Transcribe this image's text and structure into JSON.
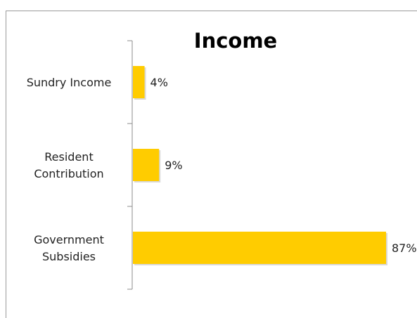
{
  "chart_data": {
    "type": "bar",
    "orientation": "horizontal",
    "title": "Income",
    "categories": [
      "Sundry Income",
      "Resident Contribution",
      "Government Subsidies"
    ],
    "category_lines": [
      [
        "Sundry Income"
      ],
      [
        "Resident",
        "Contribution"
      ],
      [
        "Government",
        "Subsidies"
      ]
    ],
    "values": [
      4,
      9,
      87
    ],
    "data_labels": [
      "4%",
      "9%",
      "87%"
    ],
    "xlim": [
      0,
      87
    ],
    "bar_color": "#FFCC00",
    "legend": "none",
    "grid": false
  }
}
